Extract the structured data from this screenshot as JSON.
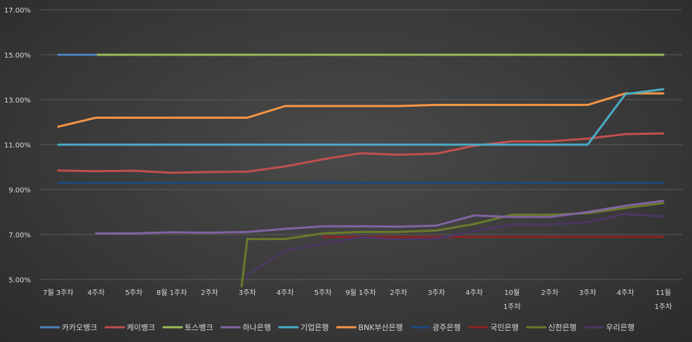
{
  "chart_data": {
    "type": "line",
    "title": "",
    "xlabel": "",
    "ylabel": "",
    "ylim": [
      5,
      17
    ],
    "yticks": [
      "5.00%",
      "7.00%",
      "9.00%",
      "11.00%",
      "13.00%",
      "15.00%",
      "17.00%"
    ],
    "ytick_values": [
      5,
      7,
      9,
      11,
      13,
      15,
      17
    ],
    "grid": true,
    "legend_position": "bottom",
    "categories": [
      [
        "7월 3주차"
      ],
      [
        "4주차"
      ],
      [
        "5주차"
      ],
      [
        "8월 1주차"
      ],
      [
        "2주차"
      ],
      [
        "3주차"
      ],
      [
        "4주차"
      ],
      [
        "5주차"
      ],
      [
        "9월 1주차"
      ],
      [
        "2주차"
      ],
      [
        "3주차"
      ],
      [
        "4주차"
      ],
      [
        "10월",
        "1주차"
      ],
      [
        "2주차"
      ],
      [
        "3주차"
      ],
      [
        "4주차"
      ],
      [
        "11월",
        "1주차"
      ]
    ],
    "series": [
      {
        "name": "카카오뱅크",
        "color": "#4f81bd",
        "values": [
          15.0,
          15.0,
          null,
          null,
          null,
          null,
          null,
          null,
          null,
          null,
          null,
          null,
          null,
          null,
          null,
          null,
          null
        ]
      },
      {
        "name": "케이뱅크",
        "color": "#c0504d",
        "values": [
          9.85,
          9.82,
          9.84,
          9.75,
          9.78,
          9.8,
          10.03,
          10.35,
          10.62,
          10.55,
          10.6,
          10.95,
          11.15,
          11.15,
          11.27,
          11.47,
          11.5
        ]
      },
      {
        "name": "토스뱅크",
        "color": "#9bbb59",
        "values": [
          null,
          15.0,
          15.0,
          15.0,
          15.0,
          15.0,
          15.0,
          15.0,
          15.0,
          15.0,
          15.0,
          15.0,
          15.0,
          15.0,
          15.0,
          15.0,
          15.0
        ]
      },
      {
        "name": "하나은행",
        "color": "#8064a2",
        "values": [
          null,
          7.05,
          7.05,
          7.1,
          7.08,
          7.12,
          7.25,
          7.37,
          7.37,
          7.35,
          7.4,
          7.85,
          7.78,
          7.78,
          8.0,
          8.28,
          8.5
        ]
      },
      {
        "name": "기업은행",
        "color": "#4bacc6",
        "values": [
          11.0,
          11.0,
          11.0,
          11.0,
          11.0,
          11.0,
          11.0,
          11.0,
          11.0,
          11.0,
          11.0,
          11.0,
          11.0,
          11.0,
          11.0,
          13.25,
          13.47
        ]
      },
      {
        "name": "BNK부산은행",
        "color": "#f79646",
        "values": [
          11.8,
          12.2,
          12.2,
          12.2,
          12.2,
          12.2,
          12.72,
          12.72,
          12.72,
          12.72,
          12.77,
          12.77,
          12.77,
          12.77,
          12.77,
          13.28,
          13.28
        ]
      },
      {
        "name": "광주은행",
        "color": "#1f497d",
        "values": [
          9.3,
          9.3,
          9.3,
          9.3,
          9.3,
          9.3,
          9.3,
          9.32,
          9.3,
          9.3,
          9.3,
          9.3,
          9.3,
          9.3,
          9.3,
          9.3,
          9.3
        ]
      },
      {
        "name": "국민은행",
        "color": "#8b2323",
        "values": [
          null,
          null,
          null,
          null,
          null,
          null,
          null,
          6.9,
          6.9,
          6.9,
          6.9,
          6.9,
          6.9,
          6.9,
          6.9,
          6.9,
          6.9
        ]
      },
      {
        "name": "신한은행",
        "color": "#6b7a2a",
        "values": [
          null,
          null,
          null,
          null,
          null,
          6.8,
          6.8,
          7.05,
          7.12,
          7.12,
          7.18,
          7.47,
          7.88,
          7.88,
          7.95,
          8.18,
          8.4
        ]
      },
      {
        "name": "우리은행",
        "color": "#4b3763",
        "values": [
          null,
          null,
          null,
          null,
          null,
          5.2,
          6.28,
          6.6,
          6.88,
          6.78,
          6.82,
          7.15,
          7.45,
          7.45,
          7.55,
          7.92,
          7.8
        ]
      }
    ],
    "segments": [
      {
        "series": "신한은행",
        "from": [
          4.85,
          4.7
        ],
        "to": [
          5,
          6.8
        ]
      },
      {
        "series": "우리은행",
        "from": [
          5,
          5.05
        ],
        "to": [
          5,
          5.2
        ]
      }
    ]
  }
}
